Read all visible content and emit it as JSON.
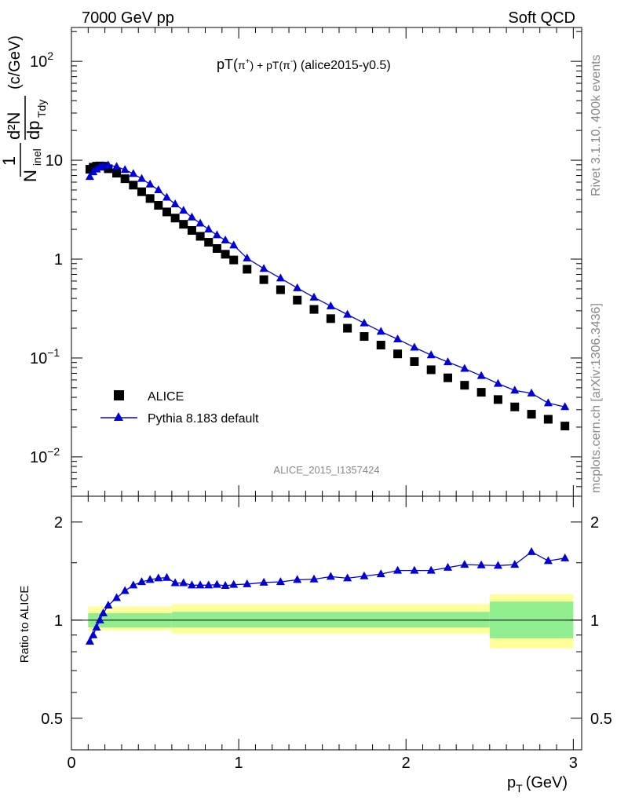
{
  "header": {
    "energy_label": "7000 GeV pp",
    "process_label": "Soft QCD"
  },
  "side_labels": {
    "rivet": "Rivet 3.1.10,  400k events",
    "mcplots": "mcplots.cern.ch [arXiv:1306.3436]"
  },
  "watermark": "ALICE_2015_I1357424",
  "colors": {
    "mc": "#0000dd",
    "data": "#000000",
    "band_inner": "#90ee90",
    "band_outer": "#ffff99"
  },
  "chart_data": [
    {
      "type": "scatter",
      "title_parts": {
        "a": "pT(",
        "b": "π",
        "c": "+",
        "d": ") + pT(",
        "e": "π",
        "f": "-",
        "g": ") (alice2015-y0.5)"
      },
      "title": "pT(π+) + pT(π-) (alice2015-y0.5)",
      "ylabel": "1/N_inel d²N/dp_T dy (c/GeV)",
      "ylabel_parts": {
        "one": "1",
        "N": "N",
        "inel": "inel",
        "d2N": "d²N",
        "dp": "dp",
        "Tdy": "Tdy",
        "unit": "(c/GeV)"
      },
      "yscale": "log",
      "ylim": [
        0.004,
        220
      ],
      "xlim": [
        0,
        3.05
      ],
      "y_ticks": [
        {
          "v": 100,
          "label": "10",
          "sup": "2"
        },
        {
          "v": 10,
          "label": "10",
          "sup": ""
        },
        {
          "v": 1,
          "label": "1",
          "sup": ""
        },
        {
          "v": 0.1,
          "label": "10",
          "sup": "−1"
        },
        {
          "v": 0.01,
          "label": "10",
          "sup": "−2"
        }
      ],
      "legend": {
        "position": "bottom-left",
        "data_label": "ALICE",
        "mc_label": "Pythia 8.183 default"
      },
      "series": [
        {
          "name": "ALICE",
          "marker": "square",
          "x": [
            0.11,
            0.13,
            0.15,
            0.17,
            0.19,
            0.22,
            0.27,
            0.32,
            0.37,
            0.42,
            0.47,
            0.52,
            0.57,
            0.62,
            0.67,
            0.72,
            0.77,
            0.82,
            0.87,
            0.92,
            0.97,
            1.05,
            1.15,
            1.25,
            1.35,
            1.45,
            1.55,
            1.65,
            1.75,
            1.85,
            1.95,
            2.05,
            2.15,
            2.25,
            2.35,
            2.45,
            2.55,
            2.65,
            2.75,
            2.85,
            2.95
          ],
          "y": [
            8.1,
            8.5,
            8.7,
            8.75,
            8.7,
            8.2,
            7.4,
            6.5,
            5.6,
            4.8,
            4.1,
            3.5,
            3.0,
            2.6,
            2.25,
            1.95,
            1.7,
            1.48,
            1.28,
            1.12,
            0.98,
            0.79,
            0.62,
            0.49,
            0.385,
            0.31,
            0.25,
            0.2,
            0.165,
            0.135,
            0.11,
            0.092,
            0.076,
            0.063,
            0.053,
            0.045,
            0.038,
            0.032,
            0.027,
            0.024,
            0.0205
          ]
        },
        {
          "name": "Pythia 8.183 default",
          "marker": "triangle",
          "x": [
            0.11,
            0.13,
            0.15,
            0.17,
            0.19,
            0.22,
            0.27,
            0.32,
            0.37,
            0.42,
            0.47,
            0.52,
            0.57,
            0.62,
            0.67,
            0.72,
            0.77,
            0.82,
            0.87,
            0.92,
            0.97,
            1.05,
            1.15,
            1.25,
            1.35,
            1.45,
            1.55,
            1.65,
            1.75,
            1.85,
            1.95,
            2.05,
            2.15,
            2.25,
            2.35,
            2.45,
            2.55,
            2.65,
            2.75,
            2.85,
            2.95
          ],
          "y": [
            6.8,
            7.6,
            8.1,
            8.5,
            8.75,
            8.9,
            8.6,
            8.0,
            7.3,
            6.5,
            5.7,
            5.0,
            4.2,
            3.6,
            3.1,
            2.65,
            2.3,
            2.0,
            1.75,
            1.55,
            1.38,
            1.02,
            0.8,
            0.64,
            0.51,
            0.41,
            0.335,
            0.275,
            0.225,
            0.185,
            0.155,
            0.128,
            0.107,
            0.091,
            0.078,
            0.066,
            0.055,
            0.047,
            0.044,
            0.035,
            0.032
          ]
        }
      ]
    },
    {
      "type": "scatter",
      "ylabel": "Ratio to ALICE",
      "xlabel": "p_T (GeV)",
      "xlabel_parts": {
        "p": "p",
        "T": "T",
        "unit": "(GeV)"
      },
      "yscale": "log",
      "ylim": [
        0.4,
        2.4
      ],
      "xlim": [
        0,
        3.05
      ],
      "y_ticks": [
        {
          "v": 2,
          "label": "2"
        },
        {
          "v": 1,
          "label": "1"
        },
        {
          "v": 0.5,
          "label": "0.5"
        }
      ],
      "x_ticks": [
        {
          "v": 0,
          "label": "0"
        },
        {
          "v": 1,
          "label": "1"
        },
        {
          "v": 2,
          "label": "2"
        },
        {
          "v": 3,
          "label": "3"
        }
      ],
      "ratio": {
        "x": [
          0.11,
          0.13,
          0.15,
          0.17,
          0.19,
          0.22,
          0.27,
          0.32,
          0.37,
          0.42,
          0.47,
          0.52,
          0.57,
          0.62,
          0.67,
          0.72,
          0.77,
          0.82,
          0.87,
          0.92,
          0.97,
          1.05,
          1.15,
          1.25,
          1.35,
          1.45,
          1.55,
          1.65,
          1.75,
          1.85,
          1.95,
          2.05,
          2.15,
          2.25,
          2.35,
          2.45,
          2.55,
          2.65,
          2.75,
          2.85,
          2.95
        ],
        "y": [
          0.86,
          0.9,
          0.95,
          1.0,
          1.05,
          1.11,
          1.17,
          1.23,
          1.28,
          1.31,
          1.33,
          1.345,
          1.35,
          1.3,
          1.3,
          1.28,
          1.28,
          1.28,
          1.285,
          1.275,
          1.285,
          1.29,
          1.305,
          1.31,
          1.33,
          1.335,
          1.36,
          1.345,
          1.365,
          1.385,
          1.42,
          1.42,
          1.42,
          1.45,
          1.48,
          1.475,
          1.47,
          1.48,
          1.62,
          1.52,
          1.55
        ],
        "band_segments": [
          {
            "x0": 0.1,
            "x1": 0.6,
            "inner": [
              0.95,
              1.05
            ],
            "outer": [
              0.93,
              1.1
            ]
          },
          {
            "x0": 0.6,
            "x1": 2.5,
            "inner": [
              0.95,
              1.06
            ],
            "outer": [
              0.91,
              1.12
            ]
          },
          {
            "x0": 2.5,
            "x1": 3.0,
            "inner": [
              0.88,
              1.14
            ],
            "outer": [
              0.82,
              1.2
            ]
          }
        ]
      }
    }
  ]
}
